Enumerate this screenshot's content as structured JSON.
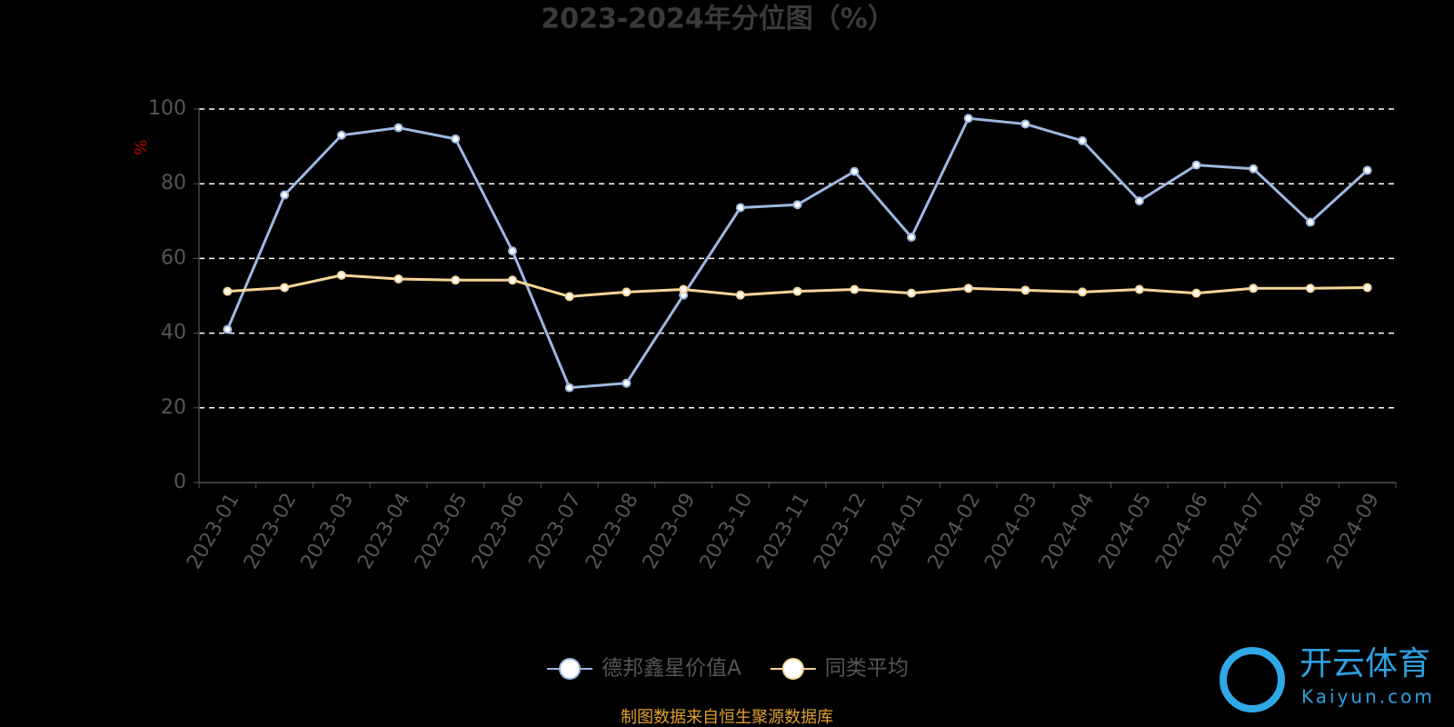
{
  "chart_data": {
    "type": "line",
    "title": "2023-2024年分位图（%）",
    "y_axis_label": "%",
    "categories": [
      "2023-01",
      "2023-02",
      "2023-03",
      "2023-04",
      "2023-05",
      "2023-06",
      "2023-07",
      "2023-08",
      "2023-09",
      "2023-10",
      "2023-11",
      "2023-12",
      "2024-01",
      "2024-02",
      "2024-03",
      "2024-04",
      "2024-05",
      "2024-06",
      "2024-07",
      "2024-08",
      "2024-09"
    ],
    "series": [
      {
        "name": "德邦鑫星价值A",
        "color": "#9db8e0",
        "values": [
          41,
          77,
          93,
          95,
          92,
          62,
          25.4,
          26.6,
          50.2,
          73.6,
          74.4,
          83.3,
          65.7,
          97.5,
          96,
          91.5,
          75.4,
          85,
          84,
          69.7,
          83.6
        ]
      },
      {
        "name": "同类平均",
        "color": "#f7d49a",
        "values": [
          51.2,
          52.2,
          55.5,
          54.5,
          54.2,
          54.2,
          49.8,
          51,
          51.7,
          50.2,
          51.2,
          51.7,
          50.7,
          52,
          51.5,
          51,
          51.7,
          50.7,
          52,
          52,
          52.2
        ]
      }
    ],
    "ylim": [
      0,
      100
    ],
    "yticks": [
      0,
      20,
      40,
      60,
      80,
      100
    ],
    "grid": true,
    "legend": "bottom",
    "source": "制图数据来自恒生聚源数据库",
    "watermark": {
      "name": "开云体育",
      "site": "Kaiyun.com"
    }
  }
}
